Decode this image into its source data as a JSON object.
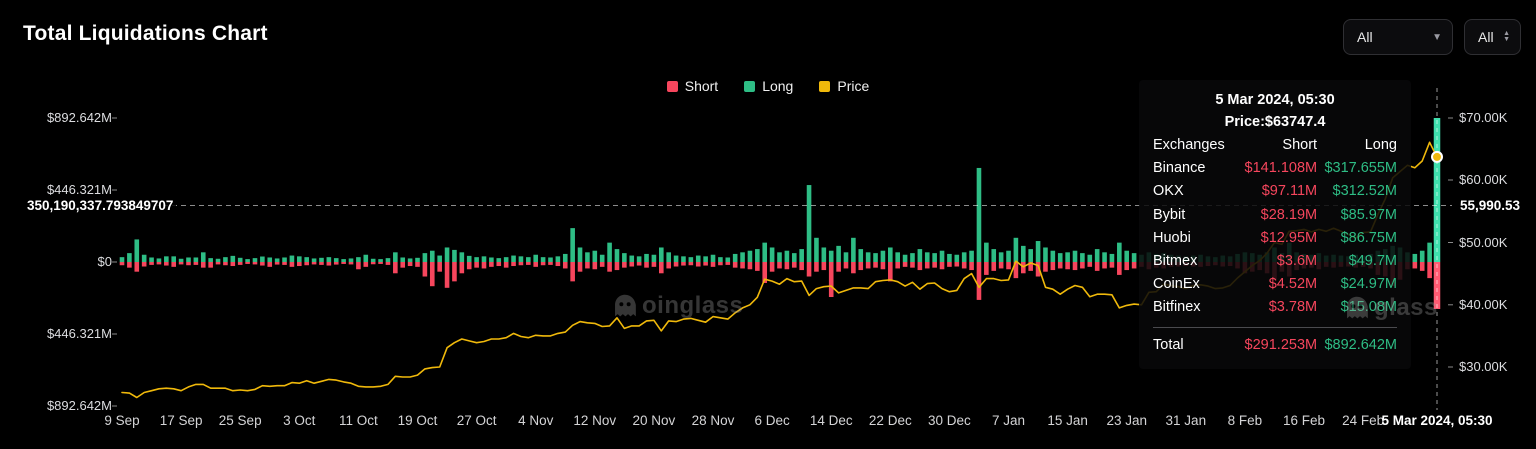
{
  "header": {
    "title": "Total Liquidations Chart"
  },
  "controls": {
    "filter_main": {
      "value": "All"
    },
    "filter_side": {
      "value": "All"
    }
  },
  "legend": [
    {
      "label": "Short",
      "color": "#f6465d"
    },
    {
      "label": "Long",
      "color": "#2ebd85"
    },
    {
      "label": "Price",
      "color": "#f0b90b"
    }
  ],
  "colors": {
    "short": "#f6465d",
    "long": "#2ebd85",
    "price": "#f0b90b",
    "background": "#000000"
  },
  "watermark": {
    "icon": "ghost-icon",
    "text_center": "oinglass",
    "text_right": "glass"
  },
  "crosshair": {
    "left_label": "350,190,337.793849707",
    "right_label": "55,990.53"
  },
  "tooltip": {
    "date": "5 Mar 2024, 05:30",
    "price": "Price:$63747.4",
    "columns": [
      "Exchanges",
      "Short",
      "Long"
    ],
    "rows": [
      {
        "exchange": "Binance",
        "short": "$141.108M",
        "long": "$317.655M"
      },
      {
        "exchange": "OKX",
        "short": "$97.11M",
        "long": "$312.52M"
      },
      {
        "exchange": "Bybit",
        "short": "$28.19M",
        "long": "$85.97M"
      },
      {
        "exchange": "Huobi",
        "short": "$12.95M",
        "long": "$86.75M"
      },
      {
        "exchange": "Bitmex",
        "short": "$3.6M",
        "long": "$49.7M"
      },
      {
        "exchange": "CoinEx",
        "short": "$4.52M",
        "long": "$24.97M"
      },
      {
        "exchange": "Bitfinex",
        "short": "$3.78M",
        "long": "$15.08M"
      }
    ],
    "total": {
      "label": "Total",
      "short": "$291.253M",
      "long": "$892.642M"
    }
  },
  "axes": {
    "left_ticks": [
      "$892.642M",
      "$446.321M",
      "$0",
      "$446.321M",
      "$892.642M"
    ],
    "right_ticks": [
      "$70.00K",
      "$60.00K",
      "$50.00K",
      "$40.00K",
      "$30.00K"
    ],
    "x_ticks": [
      {
        "label": "9 Sep",
        "i": 0
      },
      {
        "label": "17 Sep",
        "i": 8
      },
      {
        "label": "25 Sep",
        "i": 16
      },
      {
        "label": "3 Oct",
        "i": 24
      },
      {
        "label": "11 Oct",
        "i": 32
      },
      {
        "label": "19 Oct",
        "i": 40
      },
      {
        "label": "27 Oct",
        "i": 48
      },
      {
        "label": "4 Nov",
        "i": 56
      },
      {
        "label": "12 Nov",
        "i": 64
      },
      {
        "label": "20 Nov",
        "i": 72
      },
      {
        "label": "28 Nov",
        "i": 80
      },
      {
        "label": "6 Dec",
        "i": 88
      },
      {
        "label": "14 Dec",
        "i": 96
      },
      {
        "label": "22 Dec",
        "i": 104
      },
      {
        "label": "30 Dec",
        "i": 112
      },
      {
        "label": "7 Jan",
        "i": 120
      },
      {
        "label": "15 Jan",
        "i": 128
      },
      {
        "label": "23 Jan",
        "i": 136
      },
      {
        "label": "31 Jan",
        "i": 144
      },
      {
        "label": "8 Feb",
        "i": 152
      },
      {
        "label": "16 Feb",
        "i": 160
      },
      {
        "label": "24 Feb",
        "i": 168
      },
      {
        "label": "5 Mar 2024, 05:30",
        "i": 178,
        "highlight": true
      }
    ]
  },
  "chart_data": {
    "type": "bar",
    "subtype": "mirrored-bars-plus-line",
    "title": "Total Liquidations Chart",
    "x_start": "2023-09-09",
    "x_end": "2024-03-05",
    "x_unit": "day",
    "left_axis": {
      "unit": "USD millions",
      "ticks_m": [
        892.642,
        446.321,
        0,
        -446.321,
        -892.642
      ]
    },
    "right_axis": {
      "unit": "USD thousands (BTC price)",
      "ticks_k": [
        70,
        60,
        50,
        40,
        30
      ]
    },
    "legend_position": "top-center",
    "grid": false,
    "crosshair": {
      "value_m": 350.1903377938497,
      "price_k": 55.99053,
      "x_index": 178
    },
    "marker": {
      "x_index": 178,
      "price_k": 63.7474
    },
    "series": [
      {
        "name": "Long",
        "unit": "USD millions",
        "color": "#2ebd85",
        "direction": "up",
        "values": [
          30,
          55,
          140,
          45,
          28,
          22,
          35,
          35,
          20,
          28,
          28,
          60,
          24,
          20,
          30,
          38,
          26,
          18,
          24,
          34,
          28,
          22,
          28,
          40,
          35,
          30,
          22,
          26,
          30,
          24,
          18,
          22,
          30,
          45,
          20,
          18,
          24,
          60,
          28,
          22,
          26,
          55,
          70,
          40,
          90,
          75,
          60,
          38,
          30,
          35,
          28,
          24,
          30,
          40,
          35,
          30,
          45,
          30,
          28,
          35,
          50,
          210,
          90,
          60,
          70,
          45,
          120,
          80,
          55,
          40,
          35,
          50,
          45,
          90,
          60,
          40,
          35,
          30,
          40,
          35,
          45,
          30,
          28,
          50,
          60,
          70,
          80,
          120,
          90,
          60,
          70,
          55,
          80,
          477,
          150,
          90,
          70,
          100,
          60,
          150,
          80,
          60,
          55,
          70,
          90,
          60,
          45,
          55,
          80,
          60,
          55,
          70,
          50,
          45,
          60,
          70,
          583,
          120,
          80,
          60,
          70,
          150,
          100,
          80,
          130,
          90,
          70,
          55,
          60,
          70,
          55,
          45,
          80,
          60,
          50,
          120,
          70,
          55,
          45,
          60,
          50,
          55,
          45,
          40,
          35,
          40,
          45,
          35,
          30,
          40,
          35,
          50,
          60,
          55,
          45,
          60,
          90,
          55,
          120,
          60,
          50,
          45,
          55,
          40,
          45,
          40,
          35,
          45,
          40,
          50,
          70,
          80,
          100,
          90,
          60,
          50,
          70,
          120,
          892.642
        ]
      },
      {
        "name": "Short",
        "unit": "USD millions",
        "color": "#f6465d",
        "direction": "down",
        "values": [
          20,
          35,
          60,
          28,
          18,
          15,
          22,
          30,
          15,
          20,
          18,
          35,
          35,
          15,
          20,
          25,
          18,
          12,
          15,
          22,
          30,
          16,
          18,
          30,
          25,
          20,
          15,
          18,
          22,
          16,
          12,
          15,
          45,
          30,
          14,
          12,
          18,
          70,
          35,
          25,
          30,
          90,
          150,
          60,
          160,
          120,
          70,
          45,
          35,
          40,
          30,
          25,
          35,
          25,
          20,
          18,
          30,
          20,
          18,
          25,
          40,
          120,
          60,
          40,
          45,
          30,
          60,
          50,
          35,
          28,
          22,
          35,
          30,
          70,
          40,
          28,
          22,
          20,
          28,
          22,
          30,
          20,
          18,
          35,
          40,
          45,
          55,
          130,
          60,
          40,
          45,
          35,
          50,
          90,
          60,
          50,
          217,
          60,
          40,
          70,
          50,
          40,
          35,
          45,
          120,
          40,
          30,
          35,
          50,
          40,
          35,
          45,
          30,
          28,
          40,
          50,
          235,
          80,
          55,
          40,
          45,
          100,
          70,
          55,
          90,
          60,
          50,
          40,
          45,
          50,
          40,
          30,
          55,
          40,
          35,
          80,
          50,
          40,
          30,
          45,
          35,
          40,
          30,
          28,
          25,
          28,
          30,
          25,
          20,
          28,
          25,
          40,
          70,
          60,
          50,
          70,
          110,
          60,
          90,
          50,
          40,
          35,
          45,
          30,
          35,
          30,
          28,
          35,
          30,
          40,
          80,
          90,
          150,
          110,
          45,
          40,
          55,
          100,
          291.253
        ]
      },
      {
        "name": "Price",
        "unit": "USD thousands",
        "color": "#f0b90b",
        "values": [
          25.9,
          25.8,
          25.1,
          25.9,
          26.2,
          26.5,
          26.6,
          26.5,
          26.2,
          26.8,
          27.2,
          27.2,
          26.6,
          26.6,
          26.6,
          26.2,
          26.3,
          26.2,
          26.4,
          27.0,
          26.9,
          27.0,
          27.0,
          27.5,
          27.4,
          27.8,
          27.4,
          27.7,
          28.0,
          27.9,
          27.6,
          27.4,
          26.9,
          26.8,
          26.8,
          26.9,
          27.2,
          28.5,
          28.4,
          28.4,
          28.7,
          29.7,
          29.9,
          30.0,
          33.1,
          33.9,
          34.5,
          34.2,
          33.9,
          34.1,
          34.5,
          34.5,
          34.7,
          35.4,
          34.9,
          34.7,
          35.1,
          35.0,
          35.0,
          35.4,
          35.6,
          36.7,
          37.3,
          37.1,
          37.0,
          36.5,
          36.6,
          37.9,
          36.2,
          36.6,
          36.6,
          37.4,
          37.5,
          35.8,
          37.4,
          37.3,
          37.7,
          37.8,
          37.5,
          37.2,
          38.1,
          37.9,
          37.7,
          38.7,
          39.5,
          40.0,
          41.2,
          44.1,
          43.8,
          43.3,
          44.2,
          43.7,
          43.8,
          41.5,
          42.6,
          42.9,
          43.0,
          41.9,
          42.3,
          42.7,
          42.7,
          42.6,
          43.7,
          43.9,
          44.0,
          43.7,
          43.0,
          43.6,
          42.5,
          43.4,
          43.5,
          42.6,
          42.1,
          42.3,
          44.2,
          45.0,
          42.8,
          44.2,
          44.2,
          43.9,
          44.0,
          47.0,
          46.1,
          46.7,
          46.3,
          42.8,
          42.5,
          41.7,
          42.5,
          43.1,
          42.8,
          41.3,
          41.7,
          41.7,
          41.6,
          39.5,
          39.9,
          40.1,
          40.0,
          42.0,
          42.1,
          43.3,
          43.1,
          42.9,
          42.6,
          43.1,
          43.2,
          43.0,
          42.6,
          42.7,
          43.1,
          44.3,
          45.3,
          46.3,
          47.1,
          48.3,
          50.0,
          49.7,
          51.8,
          51.9,
          52.1,
          51.7,
          52.1,
          51.8,
          52.3,
          51.8,
          51.3,
          50.7,
          51.6,
          51.7,
          54.5,
          57.0,
          60.4,
          61.4,
          62.4,
          62.0,
          63.1,
          66.1,
          63.7
        ]
      }
    ]
  }
}
